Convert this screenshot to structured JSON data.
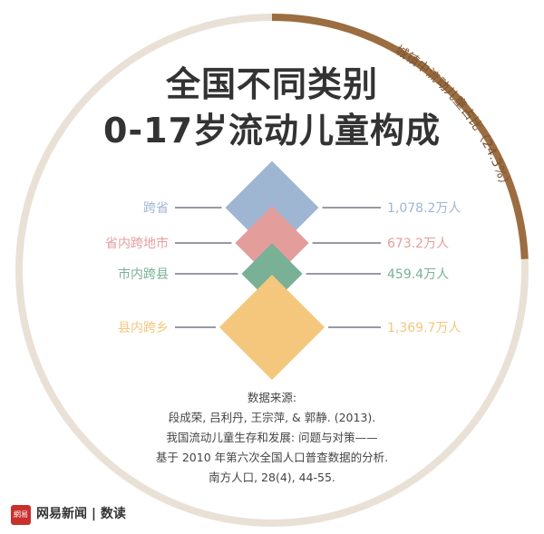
{
  "title": {
    "line1": "全国不同类别",
    "line2": "0-17岁流动儿童构成"
  },
  "ring_label": "城镇中流动儿童占比（24.3%）",
  "colors": {
    "ring_track": "#e9e1d6",
    "ring_fill": "#9b6d40",
    "line": "#5c5c6e"
  },
  "chart_data": {
    "type": "diamond",
    "unit": "万人",
    "ring_share": 24.3,
    "categories": [
      {
        "label": "跨省",
        "value": 1078.2,
        "value_label": "1,078.2万人",
        "color": "#9fb6d3"
      },
      {
        "label": "省内跨地市",
        "value": 673.2,
        "value_label": "673.2万人",
        "color": "#e39e9c"
      },
      {
        "label": "市内跨县",
        "value": 459.4,
        "value_label": "459.4万人",
        "color": "#79b196"
      },
      {
        "label": "县内跨乡",
        "value": 1369.7,
        "value_label": "1,369.7万人",
        "color": "#f4c77d"
      }
    ]
  },
  "source": {
    "lines": [
      "数据来源:",
      "段成荣, 吕利丹, 王宗萍, & 郭静. (2013).",
      "我国流动儿童生存和发展: 问题与对策——",
      "基于 2010 年第六次全国人口普查数据的分析.",
      "南方人口, 28(4), 44-55."
    ]
  },
  "brand": {
    "logo_icon": "netease-logo-icon",
    "logo_mark": "網易",
    "name": "网易新闻 | 数读"
  }
}
